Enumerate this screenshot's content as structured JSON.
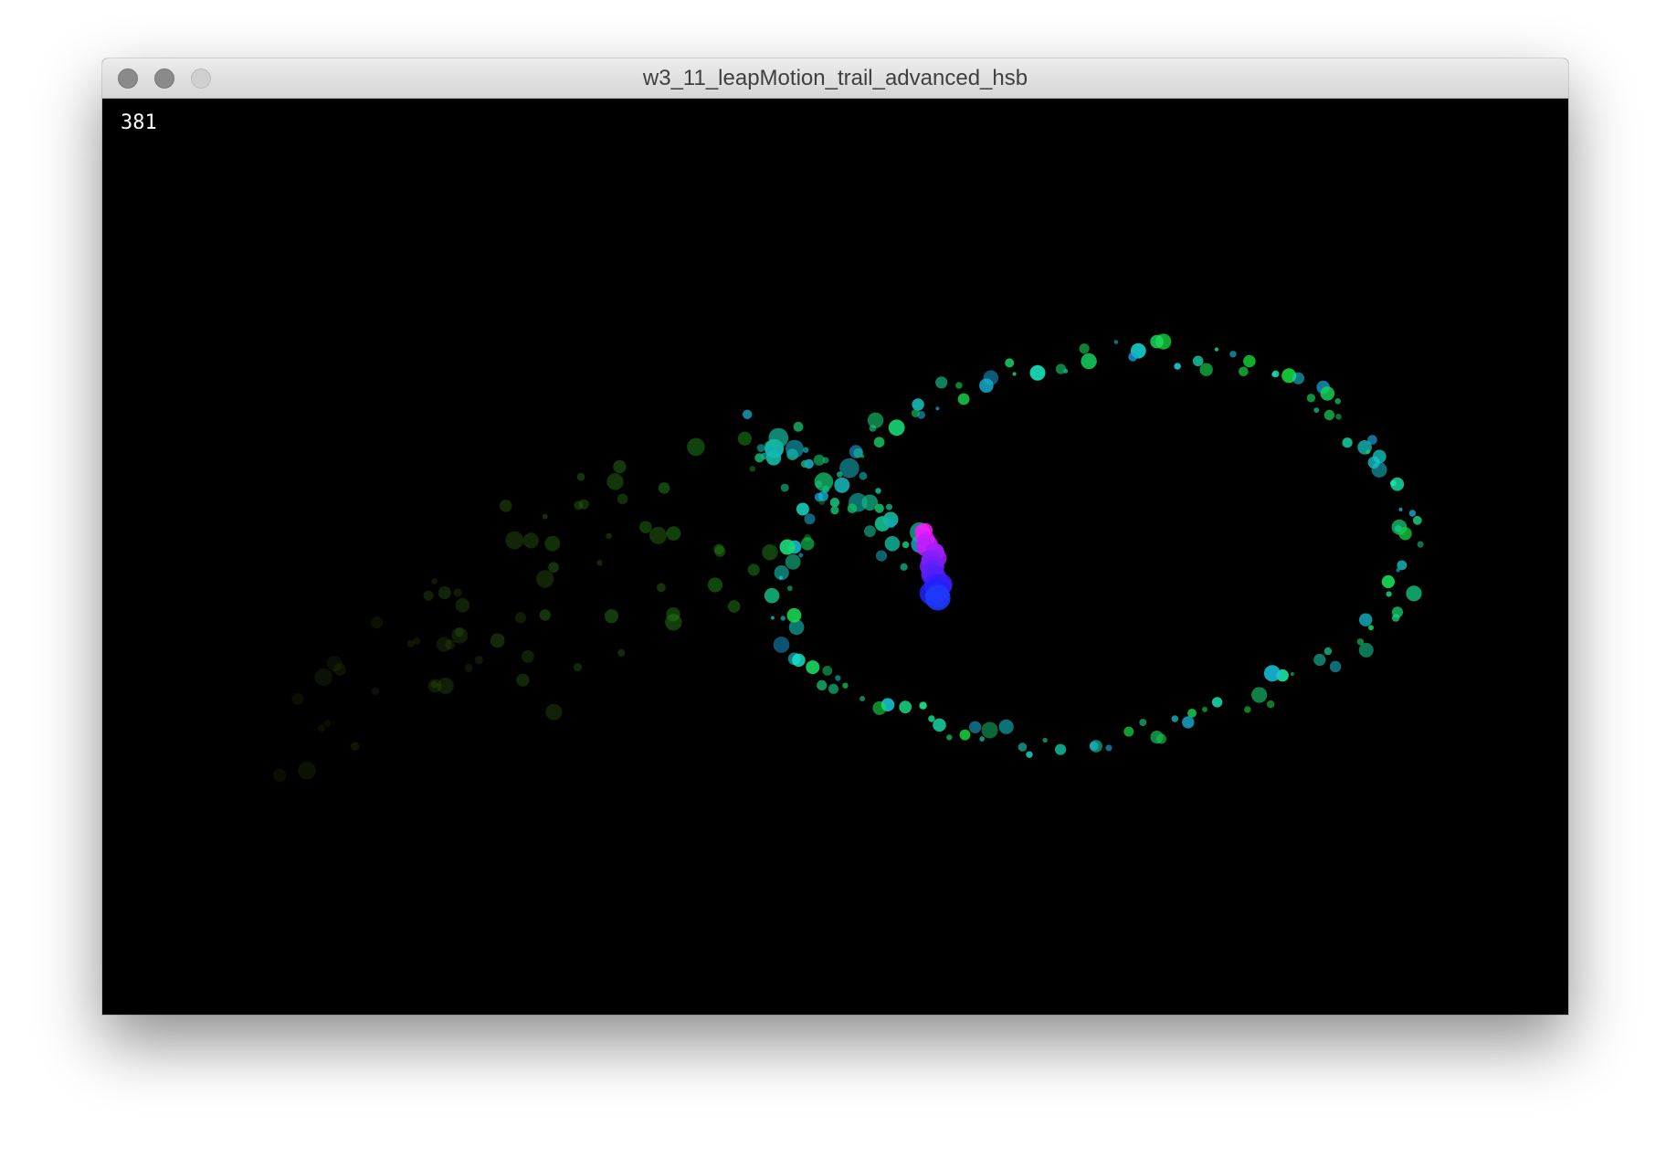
{
  "window": {
    "title": "w3_11_leapMotion_trail_advanced_hsb"
  },
  "sketch": {
    "frame_count": "381",
    "background_color": "#000000",
    "color_mode": "hsb"
  }
}
